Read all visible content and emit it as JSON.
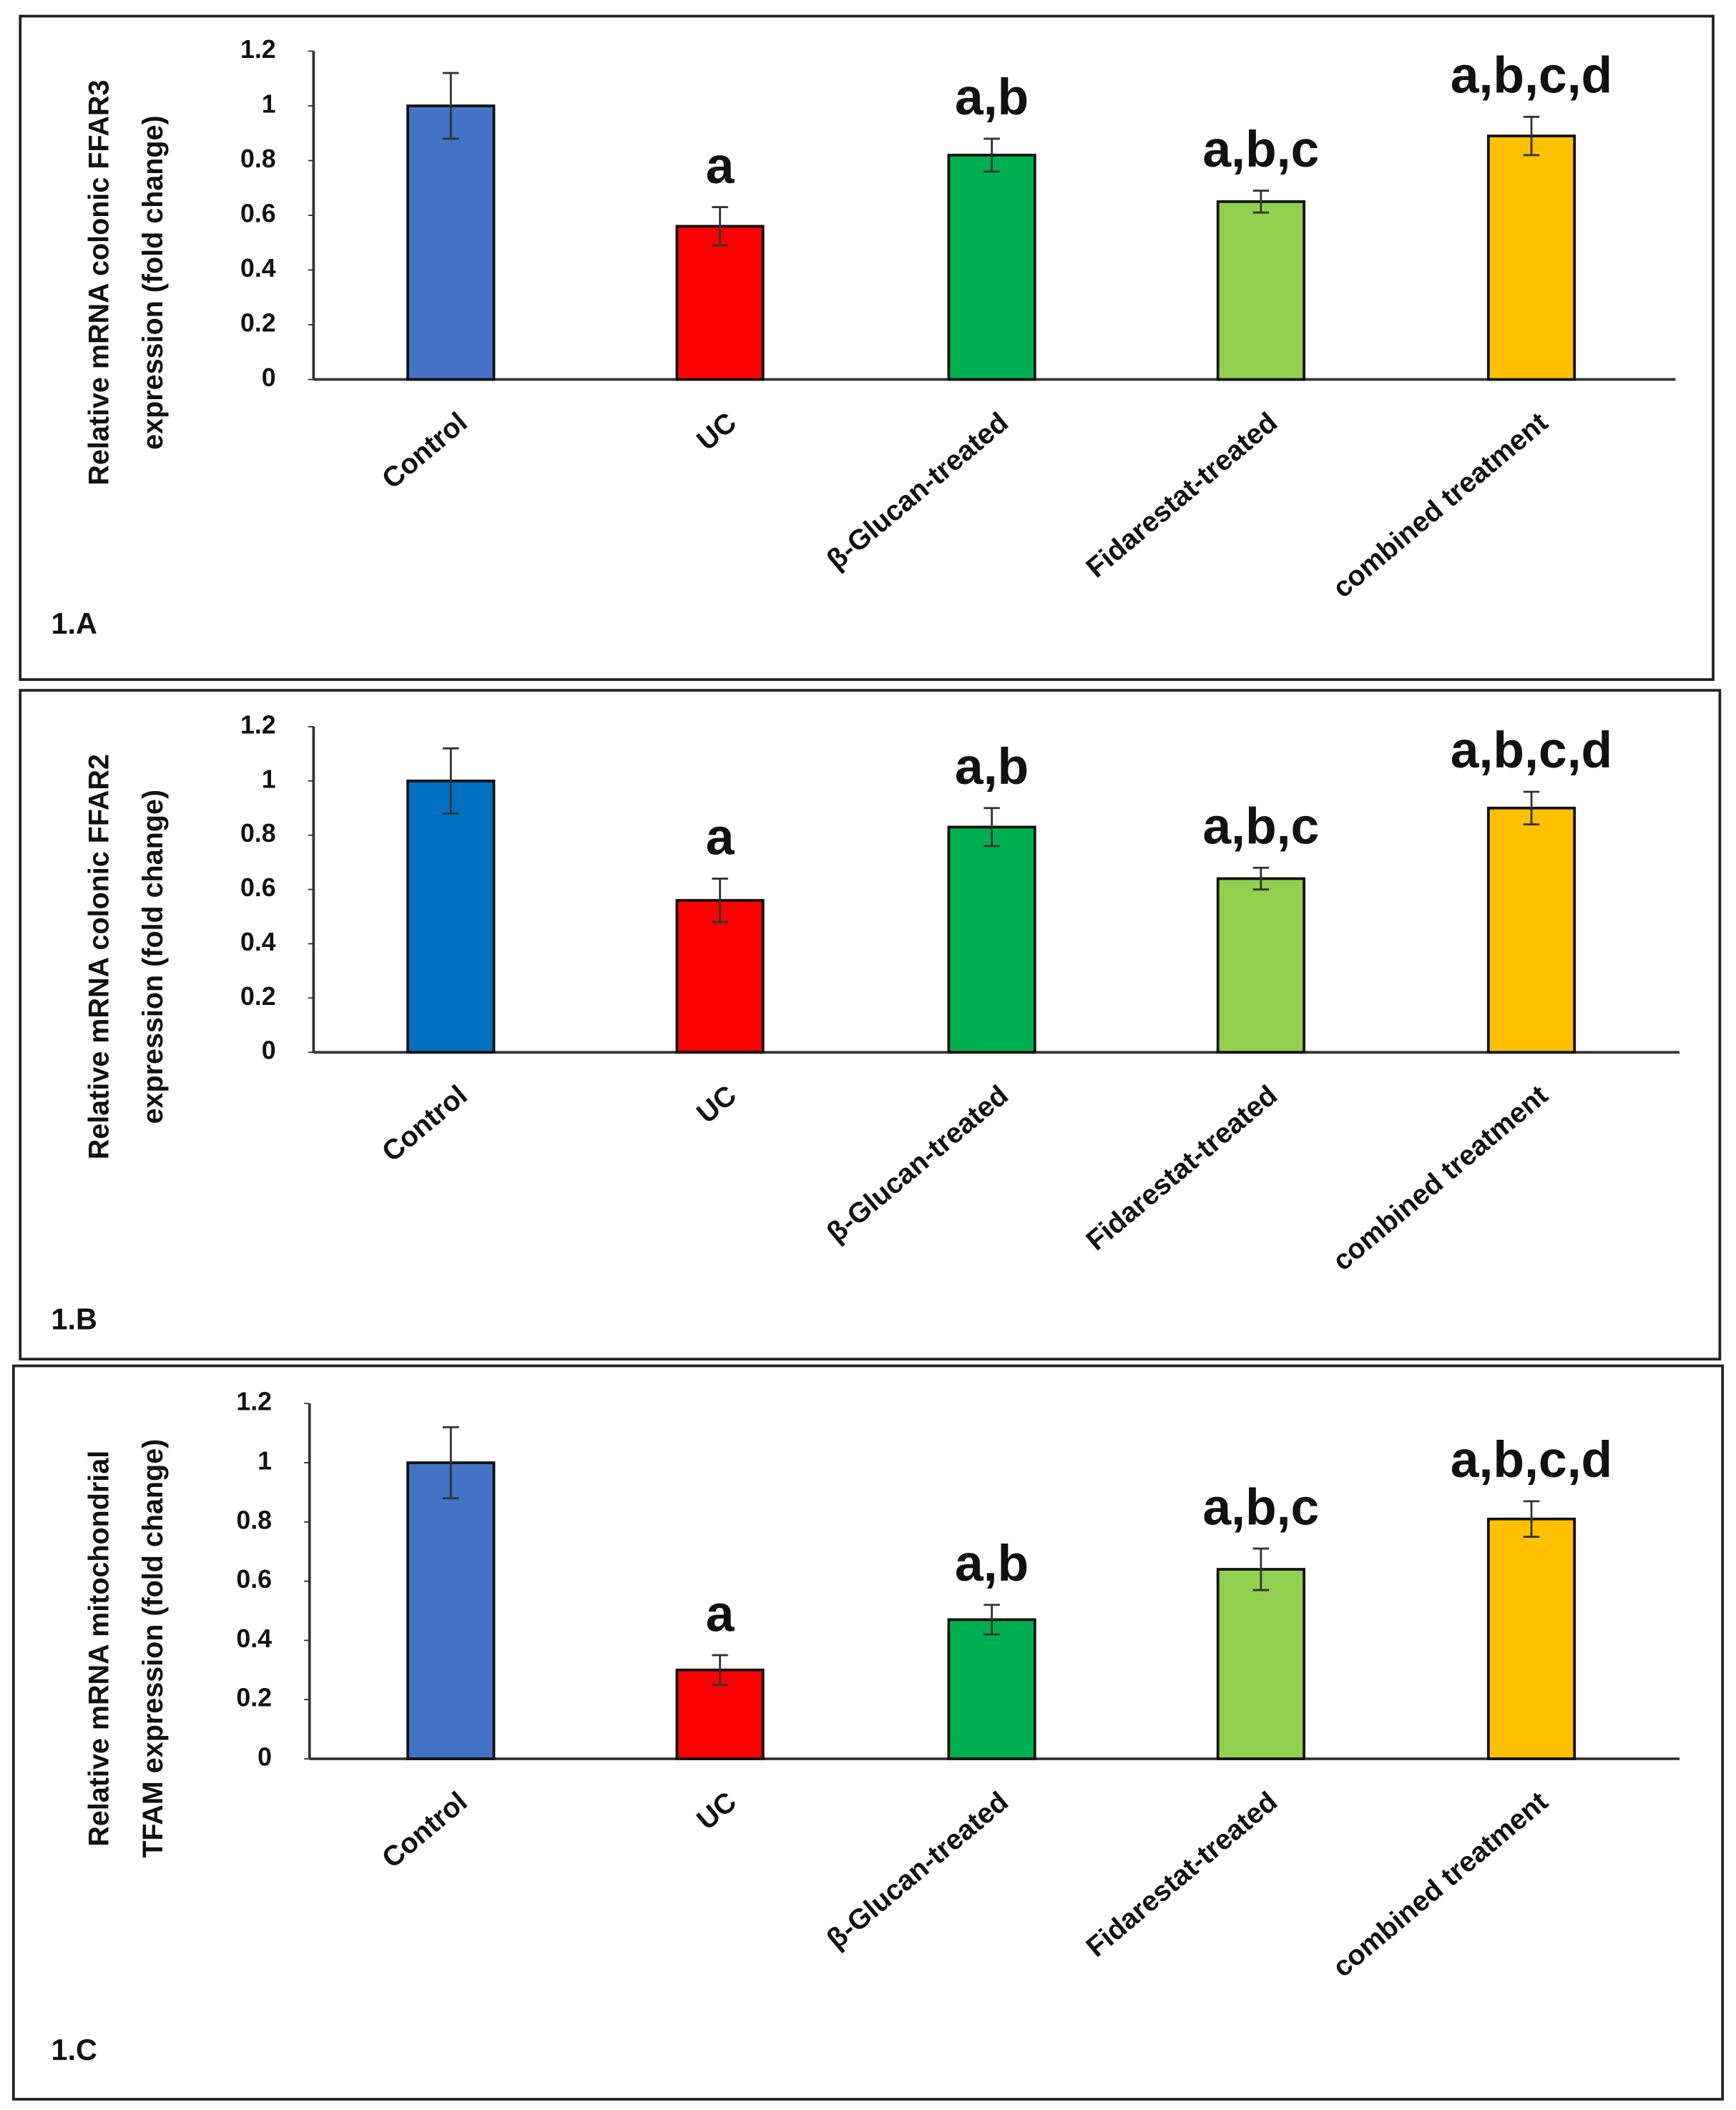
{
  "chart_data": [
    {
      "type": "bar",
      "panel_label": "1.A",
      "ylabel": [
        "Relative mRNA colonic FFAR3",
        "expression (fold change)"
      ],
      "categories": [
        "Control",
        "UC",
        "β-Glucan-treated",
        "Fidarestat-treated",
        "combined treatment"
      ],
      "values": [
        1.0,
        0.56,
        0.82,
        0.65,
        0.89
      ],
      "errors": [
        0.12,
        0.07,
        0.06,
        0.04,
        0.07
      ],
      "colors": [
        "#4472c4",
        "#ff0000",
        "#00b050",
        "#92d050",
        "#ffc000"
      ],
      "annotations": [
        null,
        "a",
        "a,b",
        "a,b,c",
        "a,b,c,d"
      ],
      "ylim": [
        0,
        1.2
      ],
      "yticks": [
        0,
        0.2,
        0.4,
        0.6,
        0.8,
        1,
        1.2
      ]
    },
    {
      "type": "bar",
      "panel_label": "1.B",
      "ylabel": [
        "Relative mRNA colonic FFAR2",
        "expression (fold change)"
      ],
      "categories": [
        "Control",
        "UC",
        "β-Glucan-treated",
        "Fidarestat-treated",
        "combined treatment"
      ],
      "values": [
        1.0,
        0.56,
        0.83,
        0.64,
        0.9
      ],
      "errors": [
        0.12,
        0.08,
        0.07,
        0.04,
        0.06
      ],
      "colors": [
        "#0070c0",
        "#ff0000",
        "#00b050",
        "#92d050",
        "#ffc000"
      ],
      "annotations": [
        null,
        "a",
        "a,b",
        "a,b,c",
        "a,b,c,d"
      ],
      "ylim": [
        0,
        1.2
      ],
      "yticks": [
        0,
        0.2,
        0.4,
        0.6,
        0.8,
        1,
        1.2
      ]
    },
    {
      "type": "bar",
      "panel_label": "1.C",
      "ylabel": [
        "Relative mRNA mitochondrial",
        "TFAM expression (fold change)"
      ],
      "categories": [
        "Control",
        "UC",
        "β-Glucan-treated",
        "Fidarestat-treated",
        "combined treatment"
      ],
      "values": [
        1.0,
        0.3,
        0.47,
        0.64,
        0.81
      ],
      "errors": [
        0.12,
        0.05,
        0.05,
        0.07,
        0.06
      ],
      "colors": [
        "#4472c4",
        "#ff0000",
        "#00b050",
        "#92d050",
        "#ffc000"
      ],
      "annotations": [
        null,
        "a",
        "a,b",
        "a,b,c",
        "a,b,c,d"
      ],
      "ylim": [
        0,
        1.2
      ],
      "yticks": [
        0,
        0.2,
        0.4,
        0.6,
        0.8,
        1,
        1.2
      ]
    }
  ]
}
